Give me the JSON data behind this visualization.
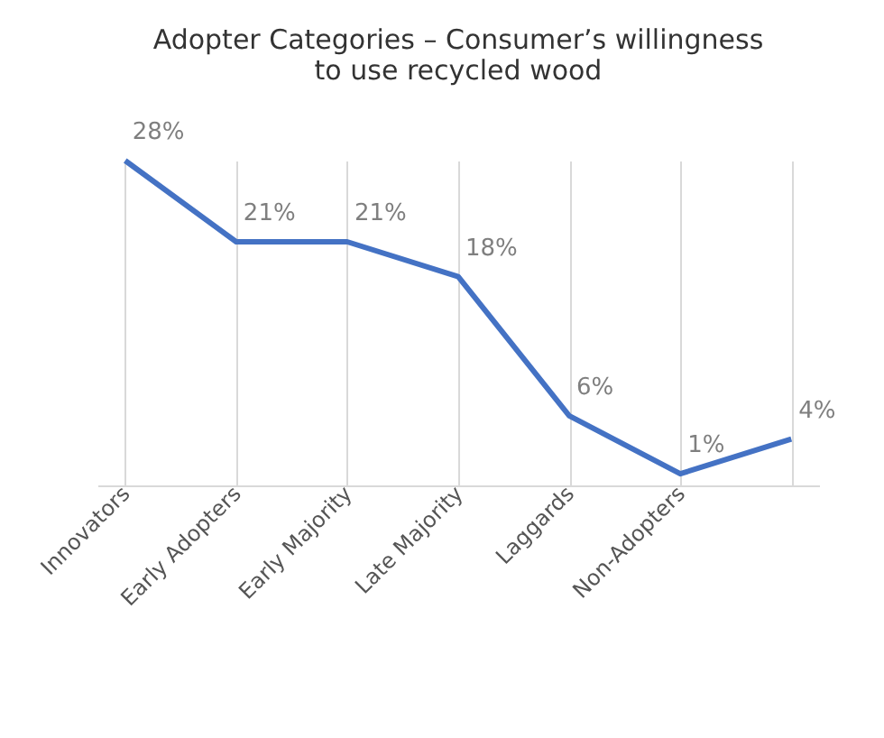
{
  "chart_data": {
    "type": "line",
    "title": [
      "Adopter Categories – Consumer’s willingness",
      "to use recycled wood"
    ],
    "categories": [
      "Innovators",
      "Early Adopters",
      "Early Majority",
      "Late Majority",
      "Laggards",
      "Non-Adopters",
      null
    ],
    "series": [
      {
        "color": "#4472c4",
        "values": [
          28,
          21,
          21,
          18,
          6,
          1,
          4
        ],
        "value_labels": [
          "28%",
          "21%",
          "21%",
          "18%",
          "6%",
          "1%",
          "4%"
        ]
      }
    ],
    "grid": "x",
    "marker": "none",
    "line_style": "solid",
    "tick_labels": "x"
  }
}
